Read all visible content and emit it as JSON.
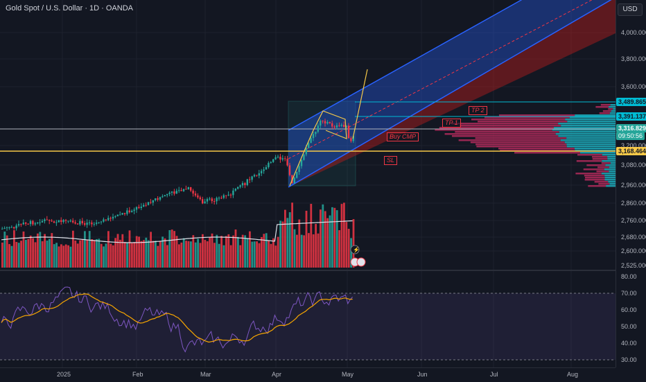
{
  "header": {
    "title": "Gold Spot / U.S. Dollar · 1D · OANDA",
    "currency": "USD"
  },
  "price_axis": {
    "ticks": [
      "4,000.000",
      "3,800.000",
      "3,600.000",
      "3,200.000",
      "3,080.000",
      "2,960.000",
      "2,860.000",
      "2,760.000",
      "2,680.000",
      "2,600.000",
      "2,525.000"
    ],
    "badges": {
      "tp2_price": "3,489.865",
      "tp1_price": "3,391.137",
      "last_price": "3,316.829",
      "countdown": "09:50:56",
      "sl_price": "3,168.464"
    },
    "colors": {
      "tp": "#00bcd4",
      "last": "#26a69a",
      "sl": "#f7c948"
    }
  },
  "rsi_axis": {
    "ticks": [
      "80.00",
      "70.00",
      "60.00",
      "50.00",
      "40.00",
      "30.00"
    ]
  },
  "time_axis": {
    "ticks": [
      "2025",
      "Feb",
      "Mar",
      "Apr",
      "May",
      "Jun",
      "Jul",
      "Aug"
    ]
  },
  "annotations": {
    "tp2": "TP 2",
    "tp1": "TP 1",
    "buy": "Buy CMP",
    "sl": "SL"
  },
  "colors": {
    "up": "#26a69a",
    "down": "#f23645",
    "background": "#131722",
    "channel_blue": "#2962ff",
    "channel_red": "#b71c1c",
    "rsi": "#7e57c2",
    "rsi_ma": "#f7a600"
  }
}
